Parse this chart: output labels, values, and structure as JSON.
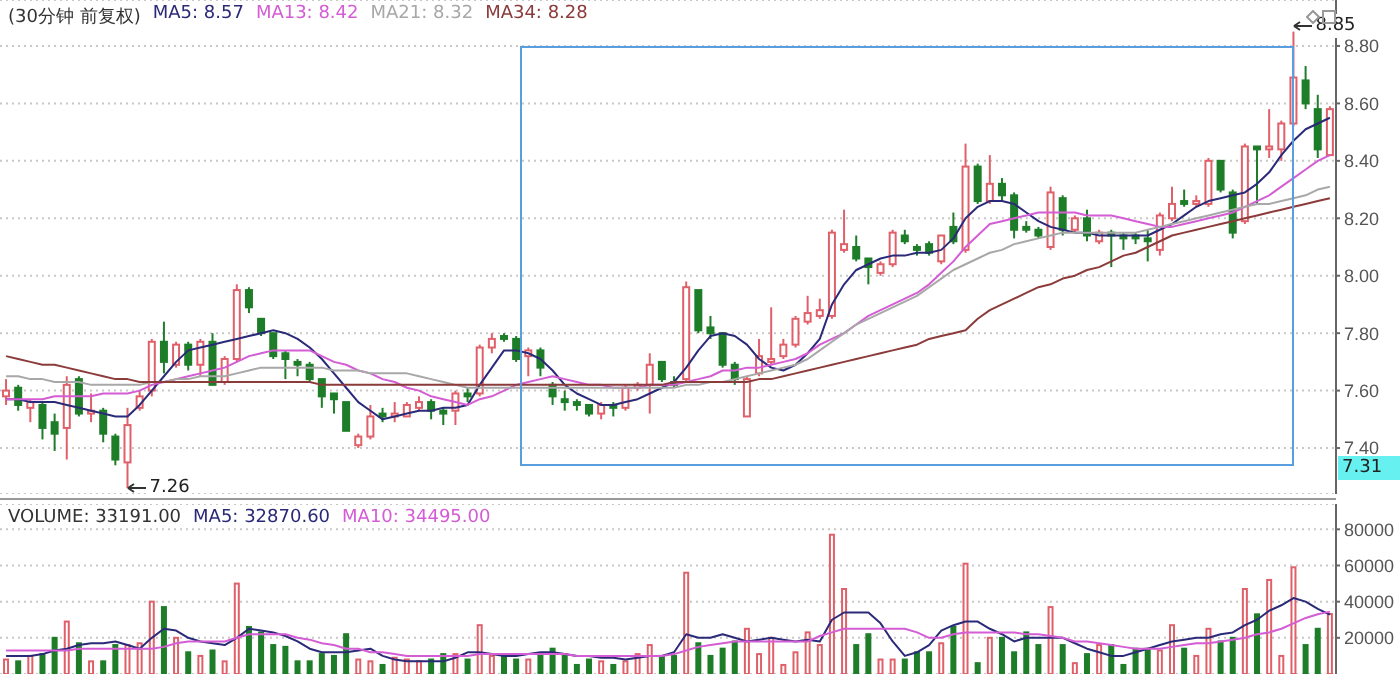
{
  "chart_data": [
    {
      "type": "candlestick",
      "title": "(30分钟 前复权)",
      "legend": "top left",
      "grid": "y",
      "tick_labels": "y",
      "categories": [
        null,
        null,
        null,
        null,
        null,
        null,
        null,
        null,
        null,
        null,
        null,
        null,
        null,
        null,
        null,
        null,
        null,
        null,
        null,
        null,
        null,
        null,
        null,
        null,
        null,
        null,
        null,
        null,
        null,
        null,
        null,
        null,
        null,
        null,
        null,
        null,
        null,
        null,
        null,
        null,
        null,
        null,
        null,
        null,
        null,
        null,
        null,
        null,
        null,
        null,
        null,
        null,
        null,
        null,
        null,
        null,
        null,
        null,
        null,
        null,
        null,
        null,
        null,
        null,
        null,
        null,
        null,
        null,
        null,
        null,
        null,
        null,
        null,
        null,
        null,
        null,
        null,
        null,
        null,
        null,
        null,
        null,
        null,
        null,
        null,
        null,
        null,
        null,
        null,
        null,
        null,
        null,
        null,
        null,
        null,
        null,
        null,
        null,
        null,
        null,
        null,
        null,
        null,
        null,
        null,
        null,
        null,
        null,
        null,
        null
      ],
      "ohlc": [
        [
          7.58,
          7.64,
          7.55,
          7.6
        ],
        [
          7.61,
          7.62,
          7.53,
          7.55
        ],
        [
          7.54,
          7.57,
          7.49,
          7.56
        ],
        [
          7.55,
          7.56,
          7.43,
          7.47
        ],
        [
          7.49,
          7.52,
          7.39,
          7.45
        ],
        [
          7.47,
          7.65,
          7.36,
          7.62
        ],
        [
          7.64,
          7.65,
          7.51,
          7.52
        ],
        [
          7.52,
          7.59,
          7.49,
          7.53
        ],
        [
          7.53,
          7.54,
          7.42,
          7.45
        ],
        [
          7.44,
          7.45,
          7.34,
          7.36
        ],
        [
          7.35,
          7.54,
          7.26,
          7.48
        ],
        [
          7.54,
          7.6,
          7.53,
          7.58
        ],
        [
          7.6,
          7.78,
          7.58,
          7.77
        ],
        [
          7.77,
          7.84,
          7.66,
          7.7
        ],
        [
          7.69,
          7.77,
          7.68,
          7.76
        ],
        [
          7.76,
          7.77,
          7.67,
          7.69
        ],
        [
          7.69,
          7.78,
          7.65,
          7.77
        ],
        [
          7.77,
          7.8,
          7.62,
          7.62
        ],
        [
          7.63,
          7.72,
          7.62,
          7.71
        ],
        [
          7.71,
          7.97,
          7.7,
          7.95
        ],
        [
          7.95,
          7.96,
          7.87,
          7.89
        ],
        [
          7.85,
          7.85,
          7.79,
          7.8
        ],
        [
          7.8,
          7.8,
          7.71,
          7.72
        ],
        [
          7.73,
          7.74,
          7.64,
          7.71
        ],
        [
          7.7,
          7.71,
          7.65,
          7.69
        ],
        [
          7.69,
          7.7,
          7.63,
          7.64
        ],
        [
          7.64,
          7.64,
          7.54,
          7.58
        ],
        [
          7.59,
          7.59,
          7.52,
          7.57
        ],
        [
          7.56,
          7.56,
          7.46,
          7.46
        ],
        [
          7.41,
          7.45,
          7.4,
          7.44
        ],
        [
          7.44,
          7.55,
          7.43,
          7.51
        ],
        [
          7.52,
          7.54,
          7.49,
          7.51
        ],
        [
          7.51,
          7.56,
          7.49,
          7.52
        ],
        [
          7.51,
          7.56,
          7.51,
          7.55
        ],
        [
          7.54,
          7.58,
          7.53,
          7.56
        ],
        [
          7.56,
          7.57,
          7.5,
          7.53
        ],
        [
          7.53,
          7.54,
          7.48,
          7.52
        ],
        [
          7.53,
          7.6,
          7.48,
          7.59
        ],
        [
          7.59,
          7.61,
          7.56,
          7.58
        ],
        [
          7.59,
          7.76,
          7.58,
          7.75
        ],
        [
          7.75,
          7.8,
          7.73,
          7.78
        ],
        [
          7.79,
          7.8,
          7.77,
          7.78
        ],
        [
          7.78,
          7.79,
          7.7,
          7.71
        ],
        [
          7.72,
          7.75,
          7.65,
          7.74
        ],
        [
          7.74,
          7.75,
          7.65,
          7.68
        ],
        [
          7.62,
          7.63,
          7.55,
          7.58
        ],
        [
          7.57,
          7.6,
          7.53,
          7.56
        ],
        [
          7.56,
          7.57,
          7.53,
          7.55
        ],
        [
          7.55,
          7.55,
          7.51,
          7.52
        ],
        [
          7.52,
          7.56,
          7.5,
          7.55
        ],
        [
          7.55,
          7.56,
          7.51,
          7.54
        ],
        [
          7.54,
          7.62,
          7.53,
          7.61
        ],
        [
          7.61,
          7.63,
          7.6,
          7.62
        ],
        [
          7.62,
          7.73,
          7.52,
          7.69
        ],
        [
          7.7,
          7.7,
          7.63,
          7.64
        ],
        [
          7.63,
          7.65,
          7.61,
          7.62
        ],
        [
          7.64,
          7.98,
          7.63,
          7.96
        ],
        [
          7.95,
          7.95,
          7.8,
          7.81
        ],
        [
          7.82,
          7.86,
          7.78,
          7.8
        ],
        [
          7.8,
          7.8,
          7.68,
          7.69
        ],
        [
          7.69,
          7.7,
          7.62,
          7.64
        ],
        [
          7.51,
          7.65,
          7.51,
          7.64
        ],
        [
          7.66,
          7.78,
          7.65,
          7.72
        ],
        [
          7.7,
          7.89,
          7.69,
          7.71
        ],
        [
          7.72,
          7.78,
          7.71,
          7.76
        ],
        [
          7.76,
          7.86,
          7.75,
          7.85
        ],
        [
          7.84,
          7.93,
          7.83,
          7.87
        ],
        [
          7.86,
          7.92,
          7.85,
          7.88
        ],
        [
          7.86,
          8.16,
          7.85,
          8.15
        ],
        [
          8.09,
          8.23,
          8.08,
          8.11
        ],
        [
          8.1,
          8.14,
          8.05,
          8.06
        ],
        [
          8.06,
          8.06,
          7.97,
          8.03
        ],
        [
          8.01,
          8.05,
          8.0,
          8.04
        ],
        [
          8.04,
          8.16,
          8.03,
          8.15
        ],
        [
          8.14,
          8.16,
          8.11,
          8.12
        ],
        [
          8.1,
          8.11,
          8.07,
          8.09
        ],
        [
          8.11,
          8.12,
          8.07,
          8.08
        ],
        [
          8.05,
          8.14,
          8.04,
          8.14
        ],
        [
          8.17,
          8.22,
          8.11,
          8.12
        ],
        [
          8.09,
          8.46,
          8.08,
          8.38
        ],
        [
          8.38,
          8.39,
          8.25,
          8.26
        ],
        [
          8.26,
          8.42,
          8.25,
          8.32
        ],
        [
          8.32,
          8.34,
          8.26,
          8.28
        ],
        [
          8.28,
          8.29,
          8.13,
          8.16
        ],
        [
          8.17,
          8.19,
          8.15,
          8.16
        ],
        [
          8.16,
          8.17,
          8.13,
          8.14
        ],
        [
          8.1,
          8.31,
          8.09,
          8.29
        ],
        [
          8.27,
          8.28,
          8.14,
          8.16
        ],
        [
          8.16,
          8.21,
          8.15,
          8.2
        ],
        [
          8.2,
          8.23,
          8.12,
          8.14
        ],
        [
          8.12,
          8.16,
          8.11,
          8.15
        ],
        [
          8.15,
          8.16,
          8.03,
          8.14
        ],
        [
          8.14,
          8.15,
          8.09,
          8.13
        ],
        [
          8.14,
          8.15,
          8.11,
          8.13
        ],
        [
          8.13,
          8.16,
          8.05,
          8.12
        ],
        [
          8.09,
          8.22,
          8.07,
          8.21
        ],
        [
          8.2,
          8.31,
          8.19,
          8.25
        ],
        [
          8.26,
          8.3,
          8.24,
          8.25
        ],
        [
          8.25,
          8.28,
          8.24,
          8.26
        ],
        [
          8.25,
          8.41,
          8.24,
          8.4
        ],
        [
          8.4,
          8.4,
          8.29,
          8.3
        ],
        [
          8.29,
          8.3,
          8.13,
          8.15
        ],
        [
          8.19,
          8.46,
          8.18,
          8.45
        ],
        [
          8.45,
          8.45,
          8.25,
          8.44
        ],
        [
          8.44,
          8.58,
          8.41,
          8.45
        ],
        [
          8.44,
          8.54,
          8.4,
          8.53
        ],
        [
          8.53,
          8.85,
          8.52,
          8.69
        ],
        [
          8.68,
          8.73,
          8.58,
          8.6
        ],
        [
          8.58,
          8.63,
          8.41,
          8.44
        ],
        [
          8.42,
          8.59,
          8.42,
          8.58
        ]
      ],
      "colors": [
        "#e0606a",
        "#1e7d28",
        "#e0606a",
        "#1e7d28",
        "#1e7d28",
        "#e0606a",
        "#1e7d28",
        "#e0606a",
        "#1e7d28",
        "#1e7d28",
        "#e0606a",
        "#e0606a",
        "#e0606a",
        "#1e7d28",
        "#e0606a",
        "#1e7d28",
        "#e0606a",
        "#1e7d28",
        "#e0606a",
        "#e0606a",
        "#1e7d28",
        "#1e7d28",
        "#1e7d28",
        "#1e7d28",
        "#1e7d28",
        "#1e7d28",
        "#1e7d28",
        "#1e7d28",
        "#1e7d28",
        "#e0606a",
        "#e0606a",
        "#1e7d28",
        "#e0606a",
        "#e0606a",
        "#e0606a",
        "#1e7d28",
        "#1e7d28",
        "#e0606a",
        "#1e7d28",
        "#e0606a",
        "#e0606a",
        "#1e7d28",
        "#1e7d28",
        "#e0606a",
        "#1e7d28",
        "#1e7d28",
        "#1e7d28",
        "#1e7d28",
        "#1e7d28",
        "#e0606a",
        "#1e7d28",
        "#e0606a",
        "#e0606a",
        "#e0606a",
        "#1e7d28",
        "#1e7d28",
        "#e0606a",
        "#1e7d28",
        "#1e7d28",
        "#1e7d28",
        "#1e7d28",
        "#e0606a",
        "#e0606a",
        "#e0606a",
        "#e0606a",
        "#e0606a",
        "#e0606a",
        "#e0606a",
        "#e0606a",
        "#e0606a",
        "#1e7d28",
        "#1e7d28",
        "#e0606a",
        "#e0606a",
        "#1e7d28",
        "#1e7d28",
        "#1e7d28",
        "#e0606a",
        "#1e7d28",
        "#e0606a",
        "#1e7d28",
        "#e0606a",
        "#1e7d28",
        "#1e7d28",
        "#1e7d28",
        "#1e7d28",
        "#e0606a",
        "#1e7d28",
        "#e0606a",
        "#1e7d28",
        "#e0606a",
        "#1e7d28",
        "#1e7d28",
        "#1e7d28",
        "#1e7d28",
        "#e0606a",
        "#e0606a",
        "#1e7d28",
        "#e0606a",
        "#e0606a",
        "#1e7d28",
        "#1e7d28",
        "#e0606a",
        "#1e7d28",
        "#e0606a",
        "#e0606a",
        "#e0606a",
        "#1e7d28",
        "#1e7d28",
        "#e0606a"
      ],
      "series": [
        {
          "type": "line",
          "name": "MA5: 8.57",
          "color": "#2a2a78",
          "values": [
            7.57,
            7.57,
            7.56,
            7.56,
            7.56,
            7.55,
            7.54,
            7.53,
            7.52,
            7.51,
            7.51,
            7.55,
            7.6,
            7.65,
            7.7,
            7.74,
            7.75,
            7.76,
            7.77,
            7.78,
            7.79,
            7.8,
            7.81,
            7.8,
            7.78,
            7.75,
            7.71,
            7.66,
            7.61,
            7.56,
            7.53,
            7.5,
            7.51,
            7.52,
            7.53,
            7.53,
            7.54,
            7.54,
            7.55,
            7.62,
            7.68,
            7.74,
            7.74,
            7.73,
            7.71,
            7.67,
            7.62,
            7.59,
            7.57,
            7.55,
            7.55,
            7.56,
            7.57,
            7.59,
            7.61,
            7.63,
            7.68,
            7.74,
            7.79,
            7.8,
            7.79,
            7.76,
            7.71,
            7.68,
            7.67,
            7.69,
            7.73,
            7.78,
            7.9,
            7.97,
            8.02,
            8.04,
            8.06,
            8.07,
            8.07,
            8.08,
            8.08,
            8.09,
            8.13,
            8.2,
            8.24,
            8.26,
            8.26,
            8.25,
            8.22,
            8.19,
            8.17,
            8.16,
            8.15,
            8.15,
            8.14,
            8.14,
            8.14,
            8.14,
            8.14,
            8.16,
            8.18,
            8.21,
            8.24,
            8.26,
            8.27,
            8.28,
            8.29,
            8.32,
            8.36,
            8.42,
            8.47,
            8.51,
            8.53,
            8.55
          ]
        },
        {
          "type": "line",
          "name": "MA13: 8.42",
          "color": "#d45cd4",
          "values": [
            7.57,
            7.57,
            7.57,
            7.57,
            7.58,
            7.58,
            7.58,
            7.58,
            7.59,
            7.59,
            7.59,
            7.6,
            7.62,
            7.63,
            7.64,
            7.65,
            7.66,
            7.67,
            7.68,
            7.7,
            7.72,
            7.73,
            7.74,
            7.74,
            7.74,
            7.74,
            7.72,
            7.7,
            7.69,
            7.67,
            7.66,
            7.64,
            7.63,
            7.61,
            7.6,
            7.58,
            7.57,
            7.56,
            7.55,
            7.57,
            7.58,
            7.6,
            7.62,
            7.63,
            7.64,
            7.65,
            7.64,
            7.63,
            7.62,
            7.62,
            7.61,
            7.61,
            7.61,
            7.62,
            7.62,
            7.62,
            7.63,
            7.64,
            7.65,
            7.67,
            7.67,
            7.68,
            7.68,
            7.69,
            7.7,
            7.71,
            7.73,
            7.76,
            7.78,
            7.8,
            7.83,
            7.86,
            7.88,
            7.9,
            7.92,
            7.94,
            7.97,
            8.01,
            8.05,
            8.1,
            8.14,
            8.18,
            8.19,
            8.2,
            8.21,
            8.22,
            8.22,
            8.22,
            8.22,
            8.21,
            8.21,
            8.21,
            8.2,
            8.19,
            8.18,
            8.17,
            8.17,
            8.18,
            8.19,
            8.2,
            8.21,
            8.22,
            8.24,
            8.26,
            8.28,
            8.31,
            8.34,
            8.37,
            8.4,
            8.42
          ]
        },
        {
          "type": "line",
          "name": "MA21: 8.32",
          "color": "#a8a8a8",
          "values": [
            7.65,
            7.65,
            7.64,
            7.64,
            7.63,
            7.63,
            7.63,
            7.62,
            7.62,
            7.62,
            7.62,
            7.62,
            7.63,
            7.63,
            7.64,
            7.64,
            7.65,
            7.65,
            7.65,
            7.66,
            7.67,
            7.68,
            7.68,
            7.68,
            7.68,
            7.68,
            7.68,
            7.67,
            7.67,
            7.67,
            7.66,
            7.66,
            7.66,
            7.66,
            7.65,
            7.64,
            7.63,
            7.62,
            7.61,
            7.61,
            7.61,
            7.61,
            7.61,
            7.61,
            7.61,
            7.61,
            7.61,
            7.61,
            7.61,
            7.61,
            7.61,
            7.61,
            7.61,
            7.61,
            7.61,
            7.61,
            7.62,
            7.62,
            7.63,
            7.63,
            7.64,
            7.65,
            7.66,
            7.67,
            7.68,
            7.69,
            7.71,
            7.74,
            7.77,
            7.8,
            7.83,
            7.85,
            7.87,
            7.89,
            7.91,
            7.93,
            7.96,
            7.99,
            8.02,
            8.04,
            8.06,
            8.08,
            8.09,
            8.11,
            8.12,
            8.13,
            8.14,
            8.15,
            8.15,
            8.15,
            8.15,
            8.15,
            8.15,
            8.15,
            8.16,
            8.17,
            8.18,
            8.19,
            8.2,
            8.21,
            8.22,
            8.23,
            8.24,
            8.25,
            8.25,
            8.26,
            8.27,
            8.28,
            8.3,
            8.31
          ]
        },
        {
          "type": "line",
          "name": "MA34: 8.28",
          "color": "#8c3b3b",
          "values": [
            7.72,
            7.71,
            7.7,
            7.69,
            7.69,
            7.68,
            7.67,
            7.66,
            7.65,
            7.64,
            7.64,
            7.63,
            7.63,
            7.63,
            7.63,
            7.63,
            7.63,
            7.63,
            7.63,
            7.63,
            7.63,
            7.63,
            7.63,
            7.63,
            7.63,
            7.63,
            7.62,
            7.62,
            7.62,
            7.62,
            7.62,
            7.62,
            7.62,
            7.62,
            7.62,
            7.62,
            7.62,
            7.62,
            7.62,
            7.62,
            7.62,
            7.62,
            7.62,
            7.62,
            7.62,
            7.62,
            7.62,
            7.62,
            7.62,
            7.62,
            7.62,
            7.62,
            7.62,
            7.62,
            7.62,
            7.63,
            7.63,
            7.63,
            7.63,
            7.63,
            7.63,
            7.63,
            7.64,
            7.64,
            7.65,
            7.66,
            7.67,
            7.68,
            7.69,
            7.7,
            7.71,
            7.72,
            7.73,
            7.74,
            7.75,
            7.76,
            7.78,
            7.79,
            7.8,
            7.81,
            7.85,
            7.88,
            7.9,
            7.92,
            7.94,
            7.96,
            7.97,
            7.99,
            8.0,
            8.02,
            8.03,
            8.05,
            8.07,
            8.08,
            8.1,
            8.12,
            8.14,
            8.15,
            8.16,
            8.17,
            8.18,
            8.19,
            8.2,
            8.21,
            8.22,
            8.23,
            8.24,
            8.25,
            8.26,
            8.27
          ]
        }
      ],
      "ylim": [
        7.24,
        8.96
      ],
      "yticks": [
        {
          "value": 7.4,
          "label": "7.40"
        },
        {
          "value": 7.6,
          "label": "7.60"
        },
        {
          "value": 7.8,
          "label": "7.80"
        },
        {
          "value": 8.0,
          "label": "8.00"
        },
        {
          "value": 8.2,
          "label": "8.20"
        },
        {
          "value": 8.4,
          "label": "8.40"
        },
        {
          "value": 8.6,
          "label": "8.60"
        },
        {
          "value": 8.8,
          "label": "8.80"
        }
      ],
      "annotations": [
        "8.85",
        "7.26",
        "7.31"
      ]
    },
    {
      "type": "bar",
      "title": "VOLUME: 33191.00",
      "legend": "top left",
      "grid": "y",
      "tick_labels": "y",
      "categories": [
        null,
        null,
        null,
        null,
        null,
        null,
        null,
        null,
        null,
        null,
        null,
        null,
        null,
        null,
        null,
        null,
        null,
        null,
        null,
        null,
        null,
        null,
        null,
        null,
        null,
        null,
        null,
        null,
        null,
        null,
        null,
        null,
        null,
        null,
        null,
        null,
        null,
        null,
        null,
        null,
        null,
        null,
        null,
        null,
        null,
        null,
        null,
        null,
        null,
        null,
        null,
        null,
        null,
        null,
        null,
        null,
        null,
        null,
        null,
        null,
        null,
        null,
        null,
        null,
        null,
        null,
        null,
        null,
        null,
        null,
        null,
        null,
        null,
        null,
        null,
        null,
        null,
        null,
        null,
        null,
        null,
        null,
        null,
        null,
        null,
        null,
        null,
        null,
        null,
        null,
        null,
        null,
        null,
        null,
        null,
        null,
        null,
        null,
        null,
        null,
        null,
        null,
        null,
        null,
        null,
        null,
        null,
        null,
        null,
        null
      ],
      "values": [
        8000,
        7000,
        10000,
        11000,
        20000,
        29000,
        17000,
        7000,
        7000,
        16000,
        16000,
        17000,
        40000,
        37000,
        20000,
        12000,
        10000,
        13000,
        7000,
        50000,
        26000,
        23000,
        16000,
        15000,
        7000,
        7000,
        11000,
        10000,
        22000,
        8000,
        7000,
        5000,
        9000,
        8000,
        7000,
        8000,
        11000,
        11000,
        8000,
        27000,
        10000,
        10000,
        8000,
        8000,
        10000,
        14000,
        11000,
        5000,
        8000,
        7000,
        5000,
        7000,
        11000,
        16000,
        10000,
        10000,
        56000,
        17000,
        10000,
        14000,
        18000,
        25000,
        11000,
        20000,
        5000,
        12000,
        23000,
        16000,
        77000,
        47000,
        16000,
        22000,
        8000,
        8000,
        8000,
        12000,
        12000,
        17000,
        26000,
        61000,
        6000,
        20000,
        20000,
        12000,
        23000,
        16000,
        37000,
        16000,
        6000,
        11000,
        16000,
        16000,
        5000,
        14000,
        14000,
        13000,
        27000,
        14000,
        10000,
        25000,
        18000,
        20000,
        47000,
        33000,
        52000,
        10000,
        59000,
        16000,
        25000,
        33191
      ],
      "colors": [
        "#e0606a",
        "#1e7d28",
        "#e0606a",
        "#1e7d28",
        "#1e7d28",
        "#e0606a",
        "#1e7d28",
        "#e0606a",
        "#1e7d28",
        "#1e7d28",
        "#e0606a",
        "#e0606a",
        "#e0606a",
        "#1e7d28",
        "#e0606a",
        "#1e7d28",
        "#e0606a",
        "#1e7d28",
        "#e0606a",
        "#e0606a",
        "#1e7d28",
        "#1e7d28",
        "#1e7d28",
        "#1e7d28",
        "#1e7d28",
        "#1e7d28",
        "#1e7d28",
        "#1e7d28",
        "#1e7d28",
        "#e0606a",
        "#e0606a",
        "#1e7d28",
        "#e0606a",
        "#e0606a",
        "#e0606a",
        "#1e7d28",
        "#1e7d28",
        "#e0606a",
        "#1e7d28",
        "#e0606a",
        "#e0606a",
        "#1e7d28",
        "#1e7d28",
        "#e0606a",
        "#1e7d28",
        "#1e7d28",
        "#1e7d28",
        "#1e7d28",
        "#1e7d28",
        "#e0606a",
        "#1e7d28",
        "#e0606a",
        "#e0606a",
        "#e0606a",
        "#1e7d28",
        "#1e7d28",
        "#e0606a",
        "#1e7d28",
        "#1e7d28",
        "#1e7d28",
        "#1e7d28",
        "#e0606a",
        "#e0606a",
        "#e0606a",
        "#e0606a",
        "#e0606a",
        "#e0606a",
        "#e0606a",
        "#e0606a",
        "#e0606a",
        "#1e7d28",
        "#1e7d28",
        "#e0606a",
        "#e0606a",
        "#1e7d28",
        "#1e7d28",
        "#1e7d28",
        "#e0606a",
        "#1e7d28",
        "#e0606a",
        "#1e7d28",
        "#e0606a",
        "#1e7d28",
        "#1e7d28",
        "#1e7d28",
        "#1e7d28",
        "#e0606a",
        "#1e7d28",
        "#e0606a",
        "#1e7d28",
        "#e0606a",
        "#1e7d28",
        "#1e7d28",
        "#1e7d28",
        "#1e7d28",
        "#e0606a",
        "#e0606a",
        "#1e7d28",
        "#e0606a",
        "#e0606a",
        "#1e7d28",
        "#1e7d28",
        "#e0606a",
        "#1e7d28",
        "#e0606a",
        "#e0606a",
        "#e0606a",
        "#1e7d28",
        "#1e7d28",
        "#e0606a"
      ],
      "series": [
        {
          "type": "line",
          "name": "MA5: 32870.60",
          "color": "#2a2a78",
          "values": [
            10000,
            10000,
            10000,
            11000,
            13000,
            14000,
            16000,
            17000,
            17000,
            18000,
            16000,
            14000,
            20000,
            25000,
            24000,
            20000,
            18000,
            17000,
            16000,
            20000,
            25000,
            24000,
            23000,
            21000,
            18000,
            14000,
            12000,
            12000,
            12000,
            13000,
            14000,
            10000,
            8000,
            7000,
            7000,
            7000,
            7000,
            9000,
            12000,
            12000,
            11000,
            10000,
            10000,
            11000,
            12000,
            12000,
            11000,
            10000,
            10000,
            9000,
            9000,
            8000,
            9000,
            10000,
            10000,
            12000,
            22000,
            20000,
            20000,
            22000,
            20000,
            18000,
            19000,
            20000,
            19000,
            18000,
            19000,
            18000,
            30000,
            34000,
            34000,
            34000,
            28000,
            18000,
            10000,
            12000,
            16000,
            24000,
            27000,
            29000,
            29000,
            25000,
            22000,
            18000,
            20000,
            20000,
            20000,
            20000,
            17000,
            14000,
            12000,
            10000,
            10000,
            12000,
            14000,
            16000,
            18000,
            19000,
            20000,
            20000,
            22000,
            23000,
            27000,
            30000,
            35000,
            38000,
            42000,
            40000,
            36000,
            32870.6
          ]
        },
        {
          "type": "line",
          "name": "MA10: 34495.00",
          "color": "#d45cd4",
          "values": [
            13000,
            13000,
            13000,
            13000,
            13000,
            13000,
            14000,
            14000,
            14000,
            14000,
            14000,
            14000,
            14000,
            15000,
            17000,
            18000,
            18000,
            18000,
            18000,
            20000,
            22000,
            22000,
            22000,
            22000,
            20000,
            19000,
            17000,
            16000,
            14000,
            14000,
            12000,
            12000,
            11000,
            10000,
            10000,
            10000,
            10000,
            10000,
            10000,
            11000,
            11000,
            11000,
            11000,
            11000,
            11000,
            11000,
            11000,
            10000,
            10000,
            10000,
            10000,
            10000,
            10000,
            10000,
            10000,
            11000,
            13000,
            15000,
            16000,
            17000,
            18000,
            18000,
            18000,
            18000,
            18000,
            18000,
            18000,
            21000,
            23000,
            25000,
            25000,
            25000,
            25000,
            25000,
            25000,
            23000,
            20000,
            20000,
            22000,
            23000,
            23000,
            23000,
            23000,
            23000,
            22000,
            22000,
            21000,
            20000,
            18000,
            18000,
            17000,
            16000,
            15000,
            14000,
            14000,
            14000,
            15000,
            16000,
            17000,
            17000,
            18000,
            19000,
            20000,
            22000,
            23000,
            25000,
            28000,
            31000,
            33000,
            34495
          ]
        }
      ],
      "ylim": [
        0,
        94000
      ],
      "yticks": [
        20000,
        40000,
        60000,
        80000
      ]
    }
  ]
}
